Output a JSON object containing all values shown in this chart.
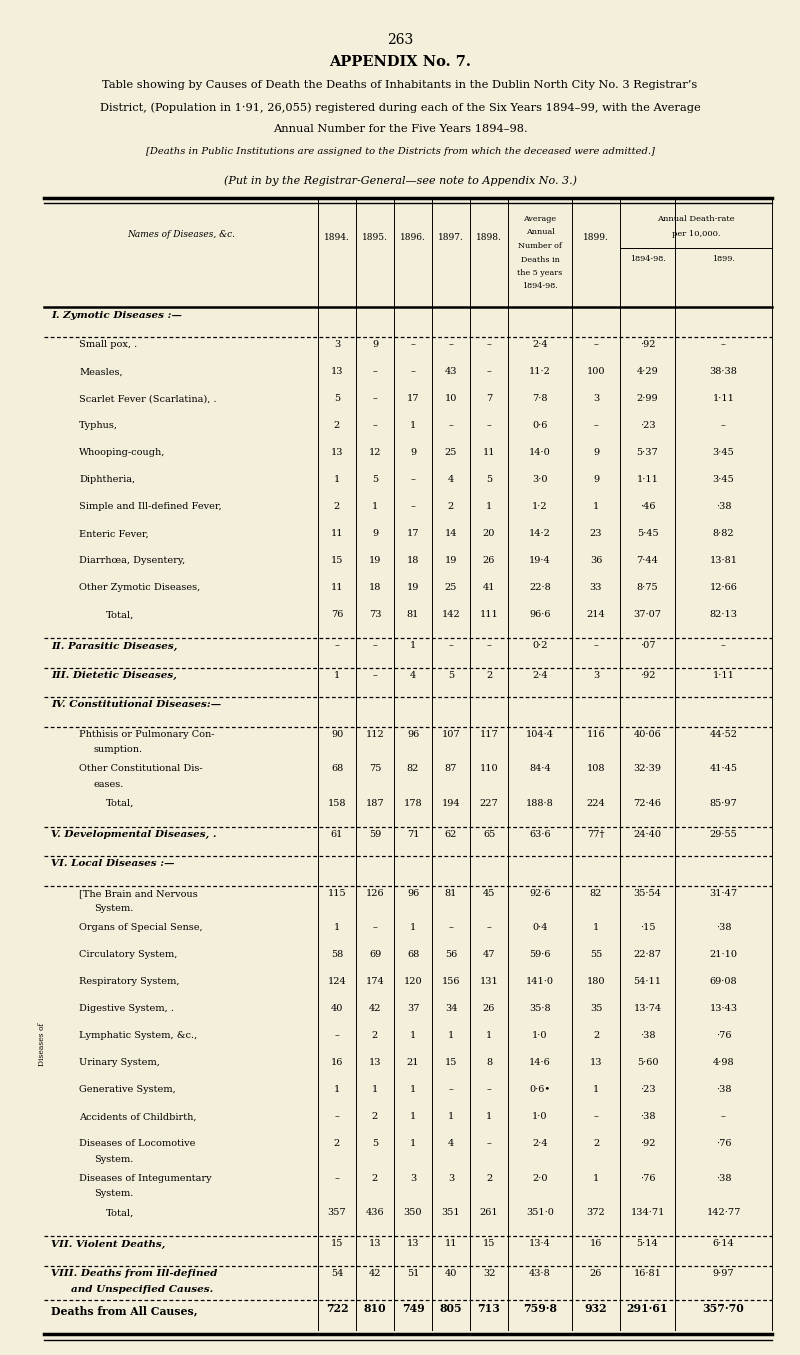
{
  "bg_color": "#f4efda",
  "page_number": "263",
  "title": "APPENDIX No. 7.",
  "subtitle": [
    "Table showing by Causes of Death the Deaths of Inhabitants in the Dublin North City No. 3 Registrar’s",
    "District, (Population in 1·91, 26,055) registered during each of the Six Years 1894–99, with the Average",
    "Annual Number for the Five Years 1894–98."
  ],
  "note1": "[Deaths in Public Institutions are assigned to the Districts from which the deceased were admitted.]",
  "note2": "(Put in by the Registrar-General—see note to Appendix No. 3.)",
  "rows": [
    {
      "type": "section",
      "text": "I. Zymotic Diseases :—",
      "vals": [
        "",
        "",
        "",
        "",
        "",
        "",
        "",
        "",
        ""
      ]
    },
    {
      "type": "data",
      "text": "Small pox, .",
      "vals": [
        "3",
        "9",
        "–",
        "–",
        "–",
        "2·4",
        "–",
        "·92",
        "–"
      ]
    },
    {
      "type": "data",
      "text": "Measles,",
      "vals": [
        "13",
        "–",
        "–",
        "43",
        "–",
        "11·2",
        "100",
        "4·29",
        "38·38"
      ]
    },
    {
      "type": "data",
      "text": "Scarlet Fever (Scarlatina), .",
      "vals": [
        "5",
        "–",
        "17",
        "10",
        "7",
        "7·8",
        "3",
        "2·99",
        "1·11"
      ]
    },
    {
      "type": "data",
      "text": "Typhus,",
      "vals": [
        "2",
        "–",
        "1",
        "–",
        "–",
        "0·6",
        "–",
        "·23",
        "–"
      ]
    },
    {
      "type": "data",
      "text": "Whooping-cough,",
      "vals": [
        "13",
        "12",
        "9",
        "25",
        "11",
        "14·0",
        "9",
        "5·37",
        "3·45"
      ]
    },
    {
      "type": "data",
      "text": "Diphtheria,",
      "vals": [
        "1",
        "5",
        "–",
        "4",
        "5",
        "3·0",
        "9",
        "1·11",
        "3·45"
      ]
    },
    {
      "type": "data",
      "text": "Simple and Ill-defined Fever,",
      "vals": [
        "2",
        "1",
        "–",
        "2",
        "1",
        "1·2",
        "1",
        "·46",
        "·38"
      ]
    },
    {
      "type": "data",
      "text": "Enteric Fever,",
      "vals": [
        "11",
        "9",
        "17",
        "14",
        "20",
        "14·2",
        "23",
        "5·45",
        "8·82"
      ]
    },
    {
      "type": "data",
      "text": "Diarrhœa, Dysentery,",
      "vals": [
        "15",
        "19",
        "18",
        "19",
        "26",
        "19·4",
        "36",
        "7·44",
        "13·81"
      ]
    },
    {
      "type": "data",
      "text": "Other Zymotic Diseases,",
      "vals": [
        "11",
        "18",
        "19",
        "25",
        "41",
        "22·8",
        "33",
        "8·75",
        "12·66"
      ]
    },
    {
      "type": "total",
      "text": "Total,",
      "vals": [
        "76",
        "73",
        "81",
        "142",
        "111",
        "96·6",
        "214",
        "37·07",
        "82·13"
      ]
    },
    {
      "type": "section",
      "text": "II. Parasitic Diseases,",
      "vals": [
        "–",
        "–",
        "1",
        "–",
        "–",
        "0·2",
        "–",
        "·07",
        "–"
      ]
    },
    {
      "type": "section",
      "text": "III. Dietetic Diseases,",
      "vals": [
        "1",
        "–",
        "4",
        "5",
        "2",
        "2·4",
        "3",
        "·92",
        "1·11"
      ]
    },
    {
      "type": "section",
      "text": "IV. Constitutional Diseases:—",
      "vals": [
        "",
        "",
        "",
        "",
        "",
        "",
        "",
        "",
        ""
      ]
    },
    {
      "type": "data2",
      "text": "Phthisis or Pulmonary Con-",
      "text2": "sumption.",
      "vals": [
        "90",
        "112",
        "96",
        "107",
        "117",
        "104·4",
        "116",
        "40·06",
        "44·52"
      ]
    },
    {
      "type": "data2",
      "text": "Other Constitutional Dis-",
      "text2": "eases.",
      "vals": [
        "68",
        "75",
        "82",
        "87",
        "110",
        "84·4",
        "108",
        "32·39",
        "41·45"
      ]
    },
    {
      "type": "total",
      "text": "Total,",
      "vals": [
        "158",
        "187",
        "178",
        "194",
        "227",
        "188·8",
        "224",
        "72·46",
        "85·97"
      ]
    },
    {
      "type": "section",
      "text": "V. Developmental Diseases, .",
      "vals": [
        "61",
        "59",
        "71",
        "62",
        "65",
        "63·6",
        "77†",
        "24·40",
        "29·55"
      ]
    },
    {
      "type": "section",
      "text": "VI. Local Diseases :—",
      "vals": [
        "",
        "",
        "",
        "",
        "",
        "",
        "",
        "",
        ""
      ]
    },
    {
      "type": "brack1",
      "text": "[The Brain and Nervous",
      "text2": "System.",
      "vals": [
        "115",
        "126",
        "96",
        "81",
        "45",
        "92·6",
        "82",
        "35·54",
        "31·47"
      ]
    },
    {
      "type": "brack",
      "text": "Organs of Special Sense,",
      "vals": [
        "1",
        "–",
        "1",
        "–",
        "–",
        "0·4",
        "1",
        "·15",
        "·38"
      ]
    },
    {
      "type": "brack",
      "text": "Circulatory System,",
      "vals": [
        "58",
        "69",
        "68",
        "56",
        "47",
        "59·6",
        "55",
        "22·87",
        "21·10"
      ]
    },
    {
      "type": "brack",
      "text": "Respiratory System,",
      "vals": [
        "124",
        "174",
        "120",
        "156",
        "131",
        "141·0",
        "180",
        "54·11",
        "69·08"
      ]
    },
    {
      "type": "brack",
      "text": "Digestive System, .",
      "vals": [
        "40",
        "42",
        "37",
        "34",
        "26",
        "35·8",
        "35",
        "13·74",
        "13·43"
      ]
    },
    {
      "type": "brack",
      "text": "Lymphatic System, &c.,",
      "vals": [
        "–",
        "2",
        "1",
        "1",
        "1",
        "1·0",
        "2",
        "·38",
        "·76"
      ]
    },
    {
      "type": "brackl",
      "text": "Urinary System,",
      "vals": [
        "16",
        "13",
        "21",
        "15",
        "8",
        "14·6",
        "13",
        "5·60",
        "4·98"
      ]
    },
    {
      "type": "brackl",
      "text": "Generative System,",
      "vals": [
        "1",
        "1",
        "1",
        "–",
        "–",
        "0·6•",
        "1",
        "·23",
        "·38"
      ]
    },
    {
      "type": "data",
      "text": "Accidents of Childbirth,",
      "vals": [
        "–",
        "2",
        "1",
        "1",
        "1",
        "1·0",
        "–",
        "·38",
        "–"
      ]
    },
    {
      "type": "data2",
      "text": "Diseases of Locomotive",
      "text2": "System.",
      "vals": [
        "2",
        "5",
        "1",
        "4",
        "–",
        "2·4",
        "2",
        "·92",
        "·76"
      ]
    },
    {
      "type": "data2",
      "text": "Diseases of Integumentary",
      "text2": "System.",
      "vals": [
        "–",
        "2",
        "3",
        "3",
        "2",
        "2·0",
        "1",
        "·76",
        "·38"
      ]
    },
    {
      "type": "total",
      "text": "Total,",
      "vals": [
        "357",
        "436",
        "350",
        "351",
        "261",
        "351·0",
        "372",
        "134·71",
        "142·77"
      ]
    },
    {
      "type": "section",
      "text": "VII. Violent Deaths,",
      "vals": [
        "15",
        "13",
        "13",
        "11",
        "15",
        "13·4",
        "16",
        "5·14",
        "6·14"
      ]
    },
    {
      "type": "section2",
      "text": "VIII. Deaths from Ill-defined",
      "text2": "and Unspecified Causes.",
      "vals": [
        "54",
        "42",
        "51",
        "40",
        "32",
        "43·8",
        "26",
        "16·81",
        "9·97"
      ]
    },
    {
      "type": "final",
      "text": "Deaths from All Causes,",
      "vals": [
        "722",
        "810",
        "749",
        "805",
        "713",
        "759·8",
        "932",
        "291·61",
        "357·70"
      ]
    }
  ]
}
